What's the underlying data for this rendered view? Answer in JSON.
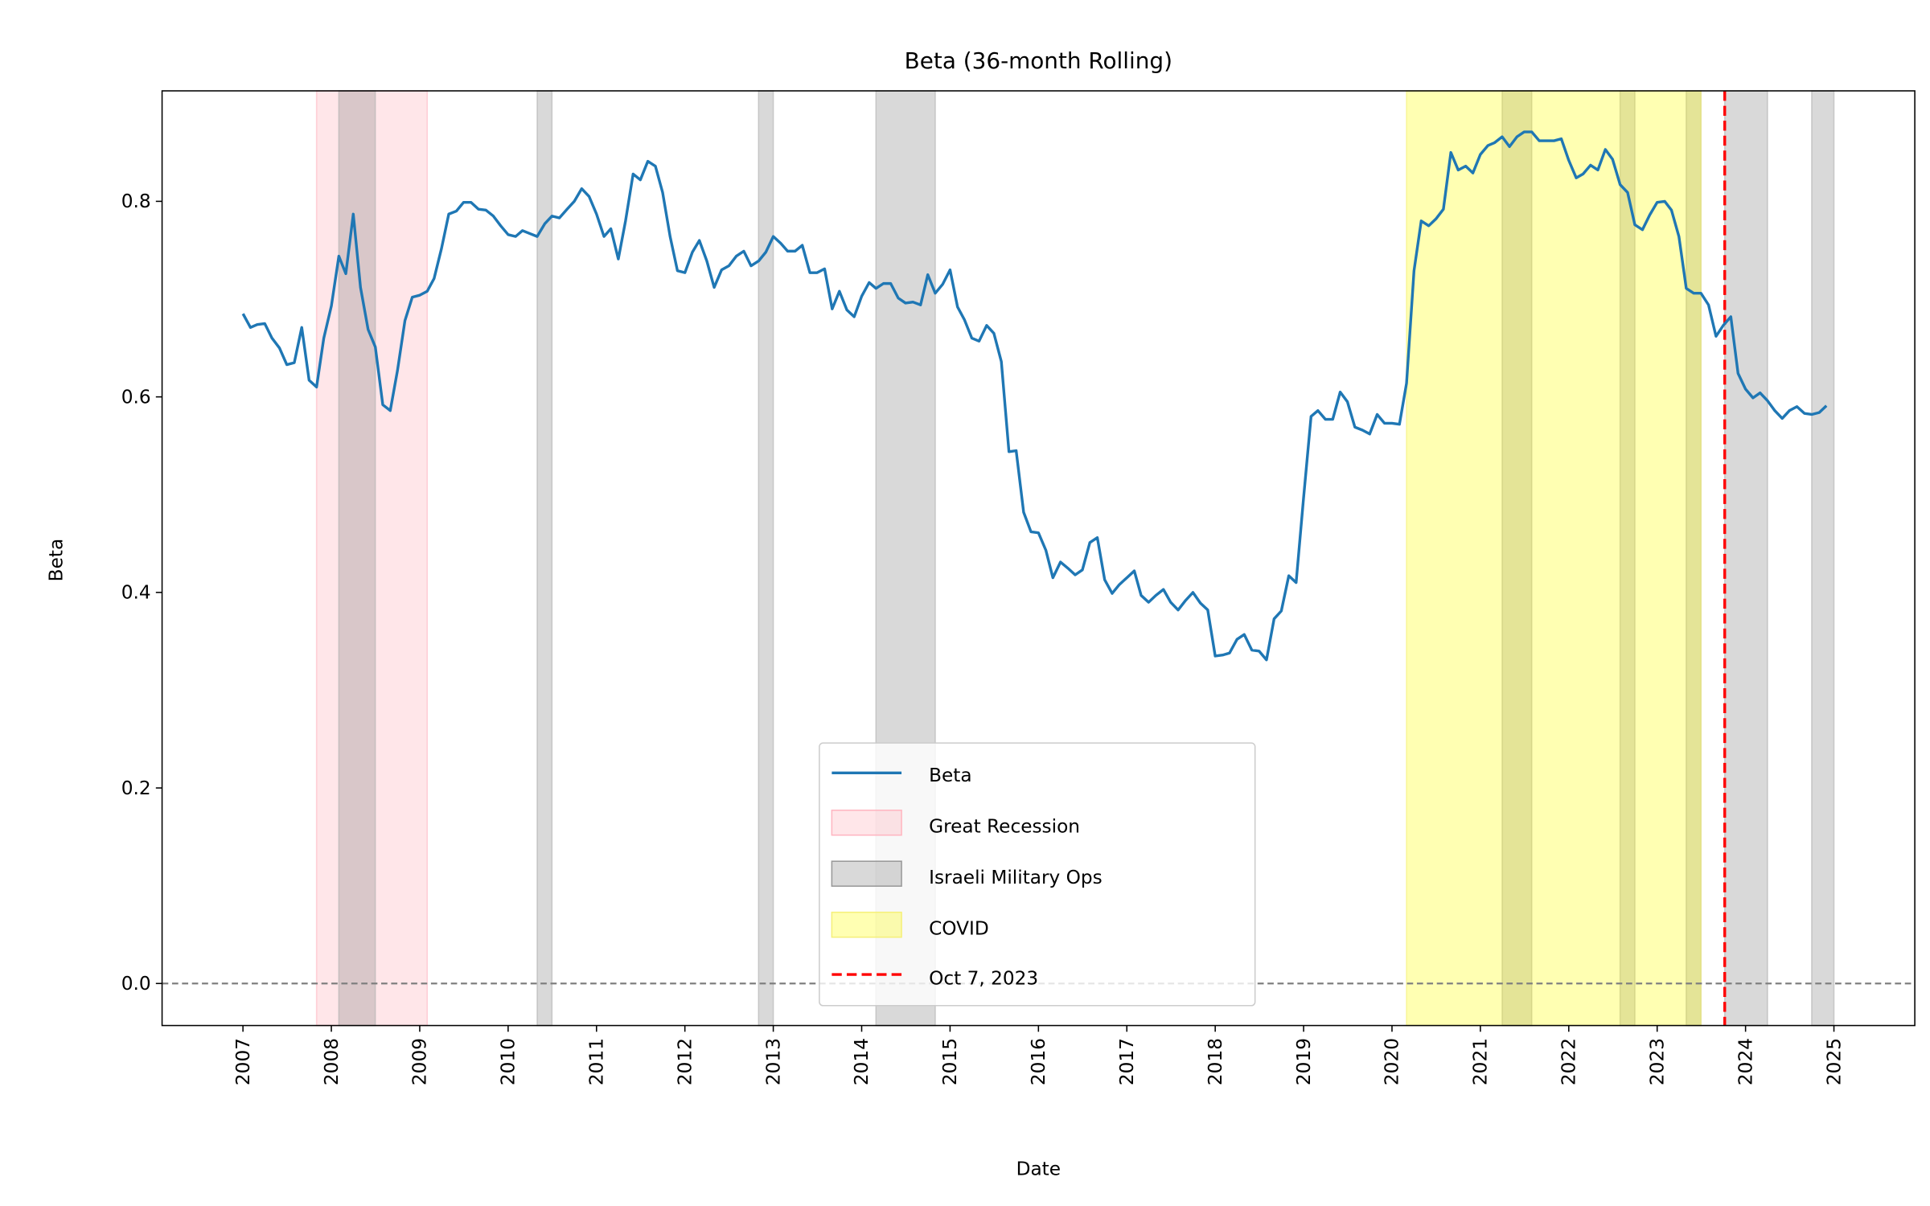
{
  "chart_data": {
    "type": "line",
    "title": "Beta (36-month Rolling)",
    "xlabel": "Date",
    "ylabel": "Beta",
    "xlim": [
      "2006-02",
      "2025-12"
    ],
    "ylim": [
      -0.043,
      0.913
    ],
    "grid": false,
    "legend_placement": "lower center",
    "x_ticks": [
      "2007",
      "2008",
      "2009",
      "2010",
      "2011",
      "2012",
      "2013",
      "2014",
      "2015",
      "2016",
      "2017",
      "2018",
      "2019",
      "2020",
      "2021",
      "2022",
      "2023",
      "2024",
      "2025"
    ],
    "y_ticks": [
      "0.0",
      "0.2",
      "0.4",
      "0.6",
      "0.8"
    ],
    "series": [
      {
        "name": "Beta",
        "color": "#1f77b4",
        "x": [
          "2007-01",
          "2007-02",
          "2007-03",
          "2007-04",
          "2007-05",
          "2007-06",
          "2007-07",
          "2007-08",
          "2007-09",
          "2007-10",
          "2007-11",
          "2007-12",
          "2008-01",
          "2008-02",
          "2008-03",
          "2008-04",
          "2008-05",
          "2008-06",
          "2008-07",
          "2008-08",
          "2008-09",
          "2008-10",
          "2008-11",
          "2008-12",
          "2009-01",
          "2009-02",
          "2009-03",
          "2009-04",
          "2009-05",
          "2009-06",
          "2009-07",
          "2009-08",
          "2009-09",
          "2009-10",
          "2009-11",
          "2009-12",
          "2010-01",
          "2010-02",
          "2010-03",
          "2010-04",
          "2010-05",
          "2010-06",
          "2010-07",
          "2010-08",
          "2010-09",
          "2010-10",
          "2010-11",
          "2010-12",
          "2011-01",
          "2011-02",
          "2011-03",
          "2011-04",
          "2011-05",
          "2011-06",
          "2011-07",
          "2011-08",
          "2011-09",
          "2011-10",
          "2011-11",
          "2011-12",
          "2012-01",
          "2012-02",
          "2012-03",
          "2012-04",
          "2012-05",
          "2012-06",
          "2012-07",
          "2012-08",
          "2012-09",
          "2012-10",
          "2012-11",
          "2012-12",
          "2013-01",
          "2013-02",
          "2013-03",
          "2013-04",
          "2013-05",
          "2013-06",
          "2013-07",
          "2013-08",
          "2013-09",
          "2013-10",
          "2013-11",
          "2013-12",
          "2014-01",
          "2014-02",
          "2014-03",
          "2014-04",
          "2014-05",
          "2014-06",
          "2014-07",
          "2014-08",
          "2014-09",
          "2014-10",
          "2014-11",
          "2014-12",
          "2015-01",
          "2015-02",
          "2015-03",
          "2015-04",
          "2015-05",
          "2015-06",
          "2015-07",
          "2015-08",
          "2015-09",
          "2015-10",
          "2015-11",
          "2015-12",
          "2016-01",
          "2016-02",
          "2016-03",
          "2016-04",
          "2016-05",
          "2016-06",
          "2016-07",
          "2016-08",
          "2016-09",
          "2016-10",
          "2016-11",
          "2016-12",
          "2017-01",
          "2017-02",
          "2017-03",
          "2017-04",
          "2017-05",
          "2017-06",
          "2017-07",
          "2017-08",
          "2017-09",
          "2017-10",
          "2017-11",
          "2017-12",
          "2018-01",
          "2018-02",
          "2018-03",
          "2018-04",
          "2018-05",
          "2018-06",
          "2018-07",
          "2018-08",
          "2018-09",
          "2018-10",
          "2018-11",
          "2018-12",
          "2019-01",
          "2019-02",
          "2019-03",
          "2019-04",
          "2019-05",
          "2019-06",
          "2019-07",
          "2019-08",
          "2019-09",
          "2019-10",
          "2019-11",
          "2019-12",
          "2020-01",
          "2020-02",
          "2020-03",
          "2020-04",
          "2020-05",
          "2020-06",
          "2020-07",
          "2020-08",
          "2020-09",
          "2020-10",
          "2020-11",
          "2020-12",
          "2021-01",
          "2021-02",
          "2021-03",
          "2021-04",
          "2021-05",
          "2021-06",
          "2021-07",
          "2021-08",
          "2021-09",
          "2021-10",
          "2021-11",
          "2021-12",
          "2022-01",
          "2022-02",
          "2022-03",
          "2022-04",
          "2022-05",
          "2022-06",
          "2022-07",
          "2022-08",
          "2022-09",
          "2022-10",
          "2022-11",
          "2022-12",
          "2023-01",
          "2023-02",
          "2023-03",
          "2023-04",
          "2023-05",
          "2023-06",
          "2023-07",
          "2023-08",
          "2023-09",
          "2023-10",
          "2023-11",
          "2023-12",
          "2024-01",
          "2024-02",
          "2024-03",
          "2024-04",
          "2024-05",
          "2024-06",
          "2024-07",
          "2024-08",
          "2024-09",
          "2024-10",
          "2024-11",
          "2024-12"
        ],
        "values": [
          0.685,
          0.671,
          0.674,
          0.675,
          0.66,
          0.65,
          0.633,
          0.635,
          0.671,
          0.617,
          0.61,
          0.66,
          0.693,
          0.744,
          0.726,
          0.787,
          0.712,
          0.669,
          0.651,
          0.592,
          0.586,
          0.627,
          0.678,
          0.702,
          0.704,
          0.708,
          0.721,
          0.752,
          0.787,
          0.79,
          0.799,
          0.799,
          0.792,
          0.791,
          0.785,
          0.775,
          0.766,
          0.764,
          0.77,
          0.767,
          0.764,
          0.777,
          0.785,
          0.783,
          0.792,
          0.8,
          0.813,
          0.805,
          0.787,
          0.764,
          0.772,
          0.741,
          0.78,
          0.828,
          0.822,
          0.841,
          0.836,
          0.809,
          0.764,
          0.729,
          0.727,
          0.748,
          0.76,
          0.739,
          0.712,
          0.73,
          0.734,
          0.744,
          0.749,
          0.734,
          0.739,
          0.748,
          0.764,
          0.757,
          0.749,
          0.749,
          0.755,
          0.727,
          0.727,
          0.731,
          0.69,
          0.708,
          0.689,
          0.682,
          0.703,
          0.717,
          0.711,
          0.716,
          0.716,
          0.701,
          0.696,
          0.697,
          0.694,
          0.725,
          0.706,
          0.715,
          0.73,
          0.692,
          0.679,
          0.66,
          0.657,
          0.673,
          0.665,
          0.636,
          0.544,
          0.545,
          0.482,
          0.462,
          0.461,
          0.443,
          0.415,
          0.431,
          0.425,
          0.418,
          0.423,
          0.451,
          0.456,
          0.413,
          0.399,
          0.408,
          0.415,
          0.422,
          0.397,
          0.39,
          0.397,
          0.403,
          0.39,
          0.382,
          0.392,
          0.4,
          0.389,
          0.382,
          0.335,
          0.336,
          0.338,
          0.352,
          0.357,
          0.341,
          0.34,
          0.331,
          0.373,
          0.381,
          0.417,
          0.41,
          0.497,
          0.58,
          0.586,
          0.577,
          0.577,
          0.605,
          0.595,
          0.569,
          0.566,
          0.562,
          0.582,
          0.573,
          0.573,
          0.572,
          0.614,
          0.729,
          0.78,
          0.775,
          0.782,
          0.792,
          0.85,
          0.832,
          0.836,
          0.829,
          0.848,
          0.857,
          0.86,
          0.866,
          0.856,
          0.866,
          0.871,
          0.871,
          0.862,
          0.862,
          0.862,
          0.864,
          0.842,
          0.824,
          0.828,
          0.837,
          0.832,
          0.853,
          0.843,
          0.817,
          0.809,
          0.776,
          0.771,
          0.786,
          0.799,
          0.8,
          0.791,
          0.764,
          0.711,
          0.706,
          0.706,
          0.694,
          0.662,
          0.673,
          0.682,
          0.624,
          0.608,
          0.599,
          0.604,
          0.596,
          0.586,
          0.578,
          0.586,
          0.59,
          0.583,
          0.582,
          0.584,
          0.591
        ]
      }
    ],
    "shaded_regions": [
      {
        "name": "Great Recession",
        "color": "#ffb6c1",
        "spans": [
          [
            "2007-11-01",
            "2009-02-01"
          ]
        ]
      },
      {
        "name": "Israeli Military Ops",
        "color": "#808080",
        "spans": [
          [
            "2008-02-01",
            "2008-07-01"
          ],
          [
            "2010-05-01",
            "2010-07-01"
          ],
          [
            "2012-11-01",
            "2013-01-01"
          ],
          [
            "2014-03-01",
            "2014-11-01"
          ],
          [
            "2021-04-01",
            "2021-08-01"
          ],
          [
            "2022-08-01",
            "2022-10-01"
          ],
          [
            "2023-05-01",
            "2023-07-01"
          ],
          [
            "2023-10-07",
            "2024-04-01"
          ],
          [
            "2024-10-01",
            "2025-01-01"
          ]
        ]
      },
      {
        "name": "COVID",
        "color": "#ffff00",
        "spans": [
          [
            "2020-03-01",
            "2023-07-01"
          ]
        ]
      }
    ],
    "reference_lines": [
      {
        "name": "Oct 7, 2023",
        "orientation": "vertical",
        "x": "2023-10-07",
        "color": "#ff0000",
        "style": "dashed"
      },
      {
        "orientation": "horizontal",
        "y": 0.0,
        "color": "#808080",
        "style": "dashed"
      }
    ],
    "legend": [
      "Beta",
      "Great Recession",
      "Israeli Military Ops",
      "COVID",
      "Oct 7, 2023"
    ]
  }
}
